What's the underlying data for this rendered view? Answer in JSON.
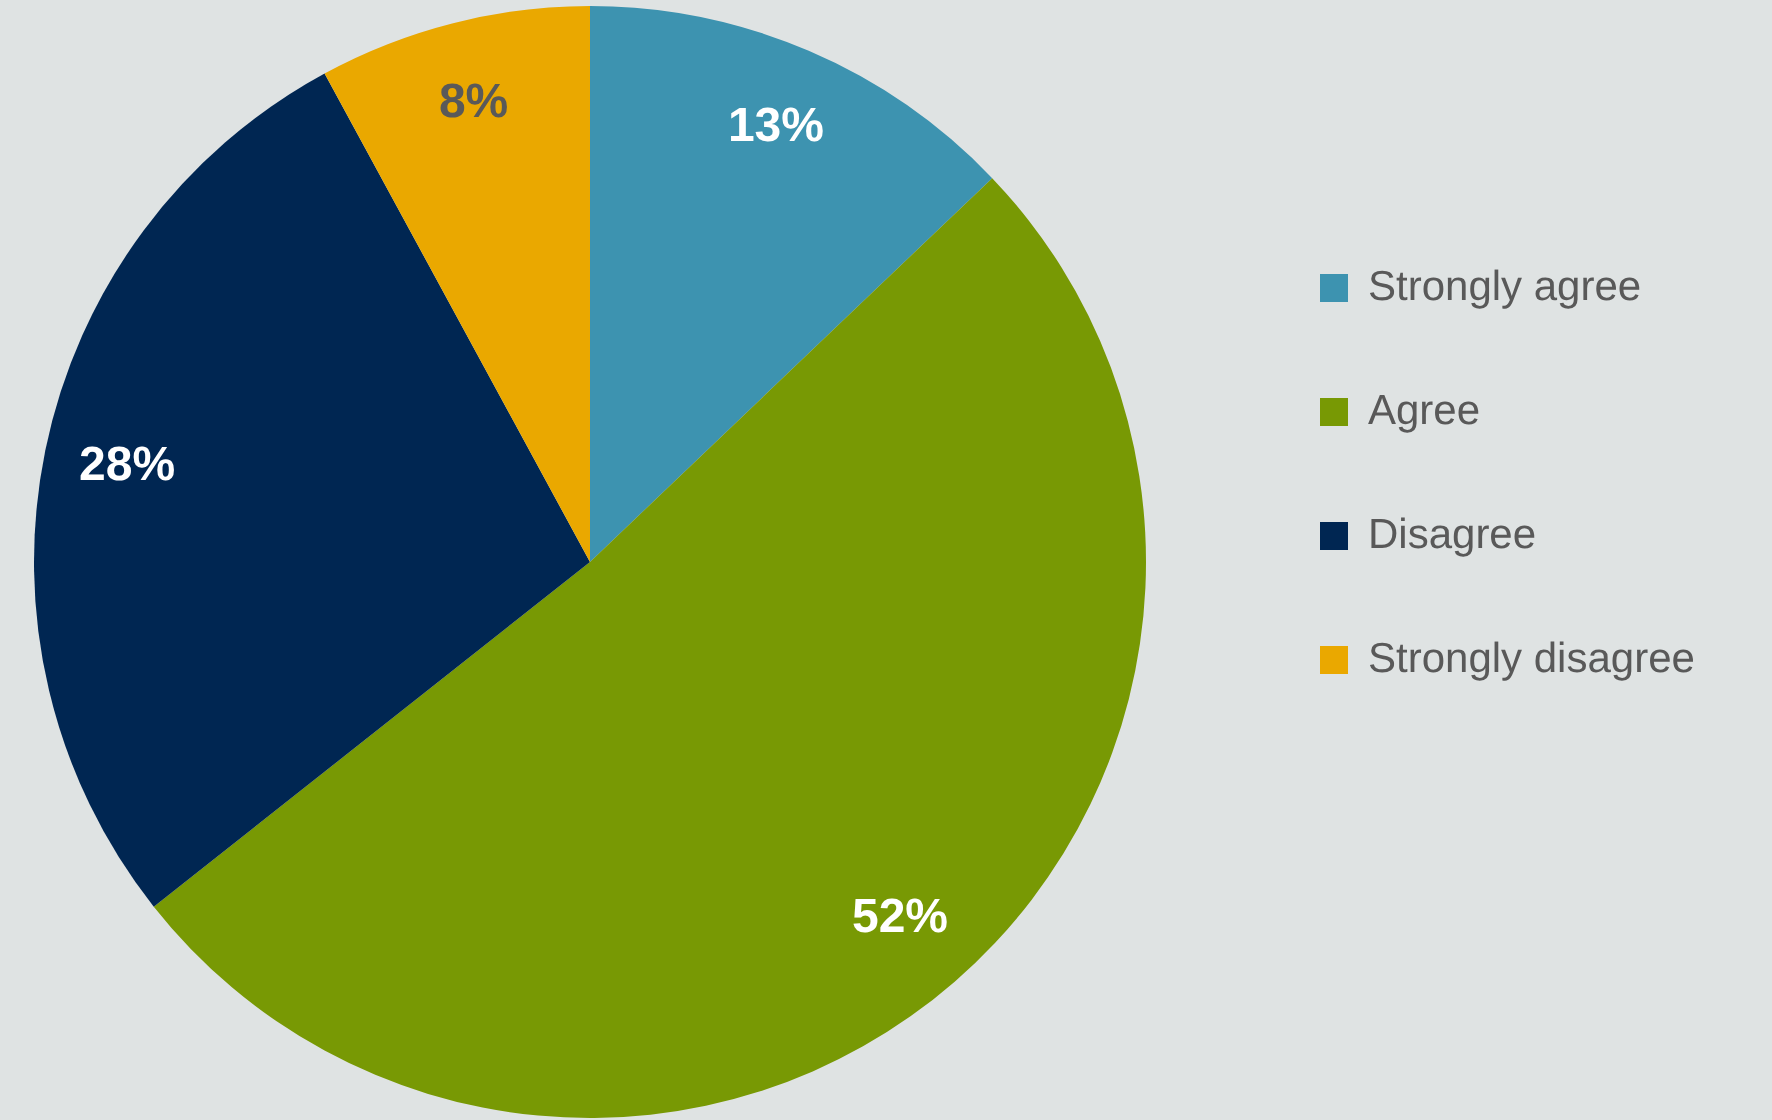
{
  "chart_data": {
    "type": "pie",
    "categories": [
      "Strongly agree",
      "Agree",
      "Disagree",
      "Strongly disagree"
    ],
    "values": [
      13,
      52,
      28,
      8
    ],
    "colors": [
      "#3d93b0",
      "#789904",
      "#002652",
      "#eaa800"
    ],
    "value_labels": [
      "13%",
      "52%",
      "28%",
      "8%"
    ],
    "legend": "right"
  }
}
